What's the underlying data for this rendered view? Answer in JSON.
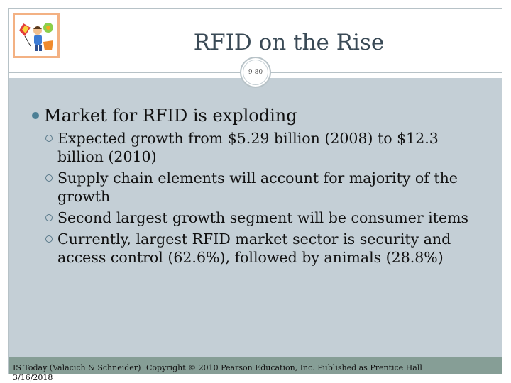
{
  "title": "RFID on the Rise",
  "slide_number": "9-80",
  "bullets": {
    "level1": "Market for RFID is exploding",
    "items": [
      "Expected growth from $5.29 billion (2008) to $12.3 billion (2010)",
      "Supply chain elements will account for majority of the growth",
      "Second largest growth segment will be consumer items",
      "Currently, largest RFID market sector is security and access control (62.6%), followed by animals (28.8%)"
    ]
  },
  "footer": {
    "book": "IS Today (Valacich & Schneider)",
    "date": "3/16/2018",
    "copyright": "Copyright © 2010 Pearson Education, Inc. Published as Prentice Hall"
  },
  "colors": {
    "content_bg": "#c4cfd6",
    "footer_bg": "#869e96",
    "logo_border": "#f3b183",
    "bullet": "#4c7f95"
  }
}
